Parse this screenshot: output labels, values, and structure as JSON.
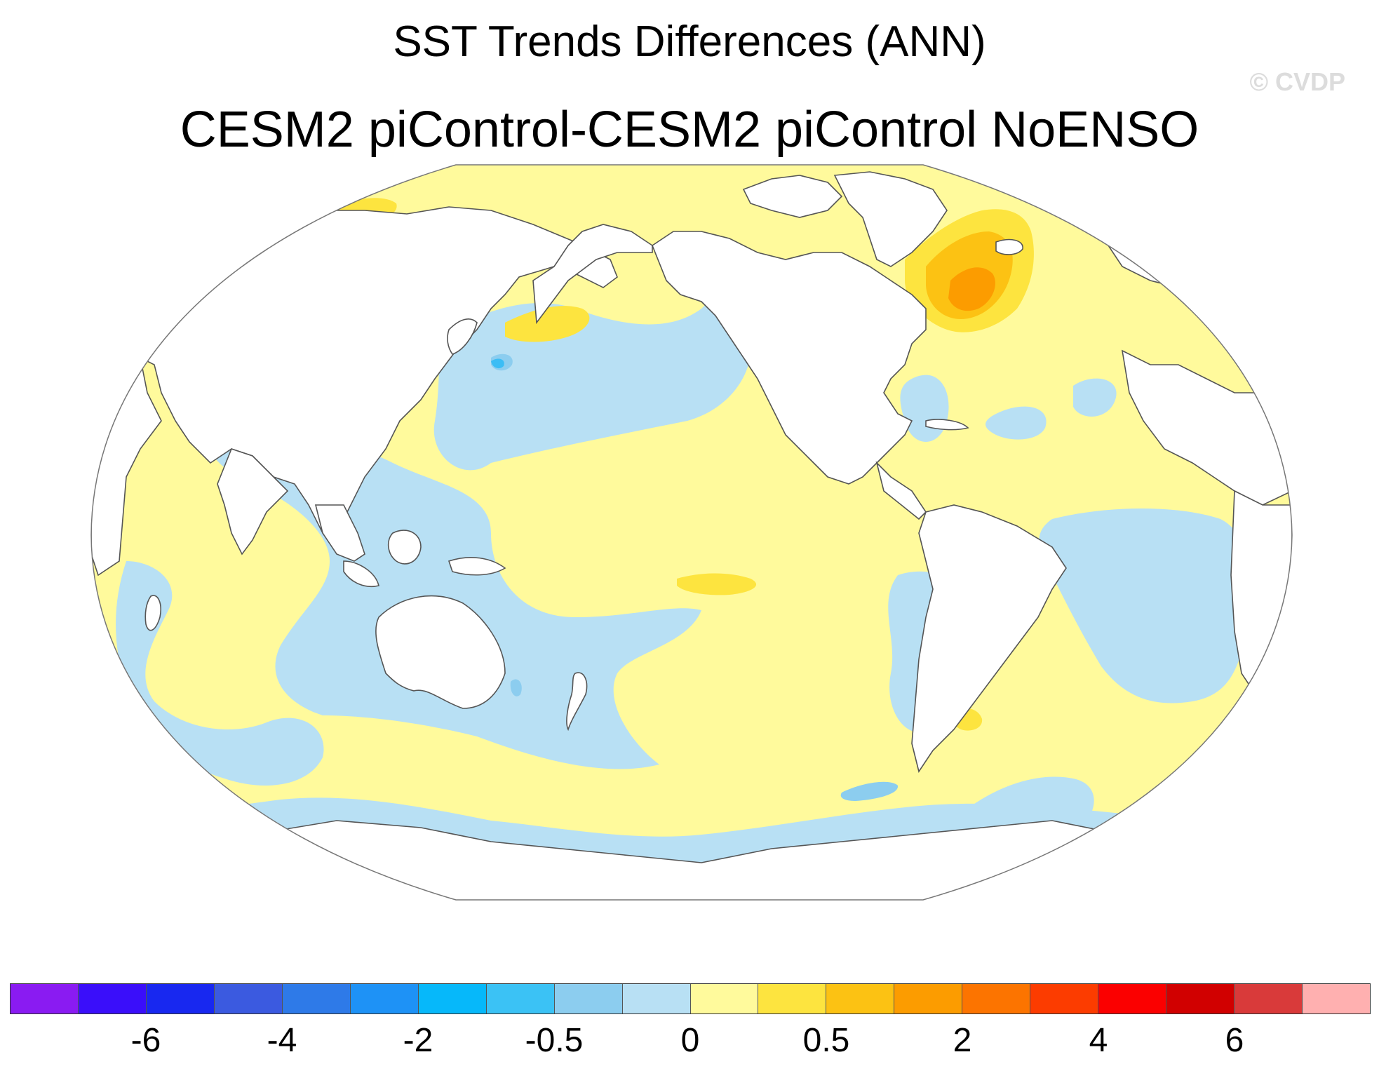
{
  "title": "SST Trends Differences (ANN)",
  "subtitle": "CESM2 piControl-CESM2 piControl NoENSO",
  "copyright": "© CVDP",
  "projection": "Robinson",
  "map_colors": {
    "land": "#ffffff",
    "coast": "#555555",
    "border": "#777777",
    "neg_small": "#b8e0f4",
    "neg_mid": "#8ccdef",
    "neg_large": "#3bbdf5",
    "pos_small": "#fffa9c",
    "pos_mid": "#fde43f",
    "pos_large": "#fcc213",
    "pos_larger": "#fc9c00"
  },
  "colorbar": {
    "colors": [
      "#8a1bf2",
      "#3a0efa",
      "#1828f0",
      "#3b5ae0",
      "#2e7ae8",
      "#1e92f6",
      "#06b8fa",
      "#3bc2f5",
      "#8ccdef",
      "#b8e0f4",
      "#fffa9c",
      "#fde43f",
      "#fcc213",
      "#fc9c00",
      "#fc7400",
      "#fc3c00",
      "#fb0000",
      "#d10000",
      "#d93a3a",
      "#ffb0b0"
    ],
    "tick_labels": [
      "-6",
      "-4",
      "-2",
      "-0.5",
      "0",
      "0.5",
      "2",
      "4",
      "6"
    ],
    "tick_boundaries": [
      2,
      4,
      6,
      8,
      10,
      12,
      14,
      16,
      18
    ]
  }
}
